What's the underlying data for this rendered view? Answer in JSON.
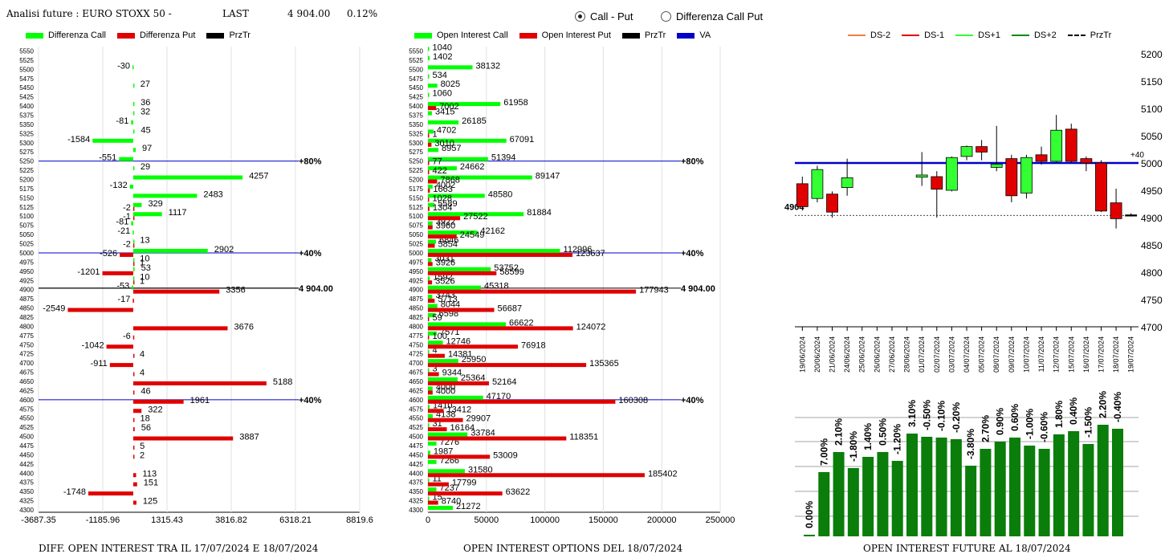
{
  "header": {
    "title": "Analisi future : EURO STOXX 50 -",
    "last_label": "LAST",
    "last_value": "4 904.00",
    "change": "0.12%"
  },
  "mode": {
    "options": [
      "Call - Put",
      "Differenza Call Put"
    ],
    "selected": "Call - Put"
  },
  "colors": {
    "green": "#00ff00",
    "red": "#e00000",
    "black": "#000000",
    "blue": "#0000cc",
    "dark_green": "#0a7d0a"
  },
  "legend1": [
    {
      "label": "Differenza Call",
      "color": "#00ff00"
    },
    {
      "label": "Differenza Put",
      "color": "#e00000"
    },
    {
      "label": "PrzTr",
      "color": "#000000"
    }
  ],
  "legend2": [
    {
      "label": "Open Interest Call",
      "color": "#00ff00"
    },
    {
      "label": "Open Interest Put",
      "color": "#e00000"
    },
    {
      "label": "PrzTr",
      "color": "#000000"
    },
    {
      "label": "VA",
      "color": "#0000cc"
    }
  ],
  "legend3": [
    {
      "label": "DS-2",
      "color": "#f08040",
      "dash": false
    },
    {
      "label": "DS-1",
      "color": "#e00000",
      "dash": false
    },
    {
      "label": "DS+1",
      "color": "#33ff33",
      "dash": false
    },
    {
      "label": "DS+2",
      "color": "#0a8a0a",
      "dash": false
    },
    {
      "label": "PrzTr",
      "color": "#000000",
      "dash": true
    }
  ],
  "titles": {
    "c1": "DIFF. OPEN INTEREST TRA IL 17/07/2024 E 18/07/2024",
    "c2": "OPEN INTEREST OPTIONS DEL 18/07/2024",
    "c3": "OPEN INTEREST FUTURE AL 18/07/2024"
  },
  "chart_data": [
    {
      "type": "bar",
      "orientation": "horizontal",
      "name": "diff_oi",
      "strikes": [
        5550,
        5525,
        5500,
        5475,
        5450,
        5425,
        5400,
        5375,
        5350,
        5325,
        5300,
        5275,
        5250,
        5225,
        5200,
        5175,
        5150,
        5125,
        5100,
        5075,
        5050,
        5025,
        5000,
        4975,
        4950,
        4925,
        4900,
        4875,
        4850,
        4825,
        4800,
        4775,
        4750,
        4725,
        4700,
        4675,
        4650,
        4625,
        4600,
        4575,
        4550,
        4525,
        4500,
        4475,
        4450,
        4425,
        4400,
        4375,
        4350,
        4325,
        4300
      ],
      "series": [
        {
          "name": "Differenza Call",
          "values": {
            "5500": -30,
            "5450": 27,
            "5400": 36,
            "5375": 32,
            "5350": -81,
            "5325": 45,
            "5300": -1584,
            "5275": 97,
            "5250": -551,
            "5225": 29,
            "5200": 4257,
            "5175": -132,
            "5150": 2483,
            "5125": 329,
            "5100": 1117,
            "5075": -81,
            "5050": -21,
            "5025": 13,
            "5000": 2902,
            "4975": 10,
            "4950": 53,
            "4925": 10,
            "4900": -53
          }
        },
        {
          "name": "Differenza Put",
          "values": {
            "5125": -2,
            "5100": -1,
            "5025": -2,
            "5000": -526,
            "4975": 1,
            "4950": -1201,
            "4925": 1,
            "4900": 3356,
            "4875": -17,
            "4850": -2549,
            "4800": 3676,
            "4775": -6,
            "4750": -1042,
            "4725": 4,
            "4700": -911,
            "4675": 4,
            "4650": 5188,
            "4625": 46,
            "4600": 1961,
            "4575": 322,
            "4550": 18,
            "4525": 56,
            "4500": 3887,
            "4475": 5,
            "4450": 2,
            "4400": 113,
            "4375": 151,
            "4350": -1748,
            "4325": 125
          }
        }
      ],
      "markers": [
        {
          "strike": 5250,
          "label": "80%",
          "color": "#0000cc"
        },
        {
          "strike": 5000,
          "label": "40%",
          "color": "#0000cc"
        },
        {
          "strike": 4904,
          "label": "4 904.00",
          "color": "#000000"
        },
        {
          "strike": 4600,
          "label": "40%",
          "color": "#0000cc"
        }
      ],
      "xticks": [
        "-3687.35",
        "-1185.96",
        "1315.43",
        "3816.82",
        "6318.21",
        "8819.6"
      ],
      "xlim": [
        -3687.35,
        8819.6
      ]
    },
    {
      "type": "bar",
      "orientation": "horizontal",
      "name": "open_interest",
      "series": [
        {
          "name": "Open Interest Call",
          "values": {
            "5550": 1040,
            "5525": 1402,
            "5500": 38132,
            "5475": 534,
            "5450": 8025,
            "5425": 1060,
            "5400": 61958,
            "5375": 3415,
            "5350": 26185,
            "5325": 4702,
            "5300": 67091,
            "5275": 8957,
            "5250": 51394,
            "5225": 24662,
            "5200": 89147,
            "5175": 4002,
            "5150": 48580,
            "5125": 5589,
            "5100": 81884,
            "5075": 3922,
            "5050": 42162,
            "5025": 6846,
            "5000": 112996,
            "4975": 3031,
            "4950": 53752,
            "4925": 1592,
            "4900": 45318,
            "4875": 3743,
            "4850": 8044,
            "4825": 6598,
            "4800": 66622,
            "4775": 7571,
            "4750": 12746,
            "4725": 4,
            "4700": 25950,
            "4675": 3,
            "4650": 25364,
            "4625": 4000,
            "4600": 47170,
            "4575": 1410,
            "4550": 4138,
            "4525": 31,
            "4500": 33784,
            "4475": 7276,
            "4450": 1987,
            "4425": 7266,
            "4400": 31580,
            "4375": 11,
            "4350": 7237,
            "4325": 15,
            "4300": 21272
          }
        },
        {
          "name": "Open Interest Put",
          "values": {
            "5400": 7002,
            "5325": 1,
            "5300": 3010,
            "5250": 77,
            "5225": 422,
            "5200": 7868,
            "5175": 1663,
            "5150": 1028,
            "5125": 1304,
            "5100": 27522,
            "5075": 3960,
            "5050": 24549,
            "5025": 5854,
            "5000": 123637,
            "4975": 3926,
            "4950": 58599,
            "4925": 3526,
            "4900": 177943,
            "4875": 5713,
            "4850": 56687,
            "4825": 59,
            "4800": 124072,
            "4775": 100,
            "4750": 76918,
            "4725": 14381,
            "4700": 135365,
            "4675": 9344,
            "4650": 52164,
            "4625": 4000,
            "4600": 160308,
            "4575": 13412,
            "4550": 29907,
            "4525": 16164,
            "4500": 118351,
            "4450": 53009,
            "4400": 185402,
            "4375": 17799,
            "4350": 63622,
            "4325": 8740
          }
        }
      ],
      "markers": [
        {
          "strike": 5250,
          "label": "80%",
          "color": "#0000cc"
        },
        {
          "strike": 5000,
          "label": "40%",
          "color": "#0000cc"
        },
        {
          "strike": 4904,
          "label": "4 904.00",
          "color": "#000000"
        },
        {
          "strike": 4600,
          "label": "40%",
          "color": "#0000cc"
        }
      ],
      "xticks": [
        "0",
        "50000",
        "100000",
        "150000",
        "200000",
        "250000"
      ],
      "xlim": [
        0,
        250000
      ]
    },
    {
      "type": "candlestick",
      "name": "future_price",
      "dates": [
        "19/06/2024",
        "20/06/2024",
        "21/06/2024",
        "24/06/2024",
        "25/06/2024",
        "26/06/2024",
        "27/06/2024",
        "28/06/2024",
        "01/07/2024",
        "02/07/2024",
        "03/07/2024",
        "04/07/2024",
        "05/07/2024",
        "08/07/2024",
        "09/07/2024",
        "10/07/2024",
        "11/07/2024",
        "12/07/2024",
        "15/07/2024",
        "16/07/2024",
        "17/07/2024",
        "18/07/2024",
        "19/07/2024"
      ],
      "candles": [
        {
          "i": 0,
          "o": 4920,
          "h": 4975,
          "l": 4913,
          "c": 4962,
          "color": "#e00000"
        },
        {
          "i": 1,
          "o": 4935,
          "h": 4995,
          "l": 4928,
          "c": 4988,
          "color": "#33ff33"
        },
        {
          "i": 2,
          "o": 4943,
          "h": 4948,
          "l": 4900,
          "c": 4910,
          "color": "#e00000"
        },
        {
          "i": 3,
          "o": 4955,
          "h": 5008,
          "l": 4940,
          "c": 4973,
          "color": "#33ff33"
        },
        {
          "i": 8,
          "o": 4974,
          "h": 5020,
          "l": 4958,
          "c": 4978,
          "color": "#33ff33"
        },
        {
          "i": 9,
          "o": 4975,
          "h": 4985,
          "l": 4900,
          "c": 4952,
          "color": "#e00000"
        },
        {
          "i": 10,
          "o": 4950,
          "h": 5012,
          "l": 4948,
          "c": 5010,
          "color": "#33ff33"
        },
        {
          "i": 11,
          "o": 5012,
          "h": 5032,
          "l": 5005,
          "c": 5030,
          "color": "#33ff33"
        },
        {
          "i": 12,
          "o": 5030,
          "h": 5042,
          "l": 5005,
          "c": 5020,
          "color": "#e00000"
        },
        {
          "i": 13,
          "o": 4992,
          "h": 5068,
          "l": 4985,
          "c": 4998,
          "color": "#33ff33"
        },
        {
          "i": 14,
          "o": 5008,
          "h": 5015,
          "l": 4928,
          "c": 4940,
          "color": "#e00000"
        },
        {
          "i": 15,
          "o": 4945,
          "h": 5015,
          "l": 4935,
          "c": 5010,
          "color": "#33ff33"
        },
        {
          "i": 16,
          "o": 5003,
          "h": 5030,
          "l": 4997,
          "c": 5015,
          "color": "#e00000"
        },
        {
          "i": 17,
          "o": 5003,
          "h": 5088,
          "l": 5000,
          "c": 5060,
          "color": "#33ff33"
        },
        {
          "i": 18,
          "o": 5062,
          "h": 5072,
          "l": 5000,
          "c": 5003,
          "color": "#e00000"
        },
        {
          "i": 19,
          "o": 5008,
          "h": 5012,
          "l": 4985,
          "c": 5000,
          "color": "#e00000"
        },
        {
          "i": 20,
          "o": 5000,
          "h": 5005,
          "l": 4910,
          "c": 4912,
          "color": "#e00000"
        },
        {
          "i": 21,
          "o": 4927,
          "h": 4953,
          "l": 4880,
          "c": 4898,
          "color": "#e00000"
        },
        {
          "i": 22,
          "o": 4905,
          "h": 4908,
          "l": 4902,
          "c": 4904,
          "color": "#000000"
        }
      ],
      "hline": {
        "value": 5000,
        "label": "+40",
        "color": "#0000cc"
      },
      "price_line": {
        "value": 4904,
        "label": "4904"
      },
      "yticks": [
        4700,
        4750,
        4800,
        4850,
        4900,
        4950,
        5000,
        5050,
        5100,
        5150,
        5200
      ],
      "ylim": [
        4700,
        5200
      ]
    },
    {
      "type": "bar",
      "name": "future_oi_change",
      "labels": [
        "0.00%",
        "7.00%",
        "2.10%",
        "-1.80%",
        "1.40%",
        "0.50%",
        "-1.20%",
        "3.10%",
        "-0.50%",
        "-0.10%",
        "-0.20%",
        "-3.80%",
        "2.70%",
        "0.90%",
        "0.60%",
        "-1.00%",
        "-0.60%",
        "1.80%",
        "0.40%",
        "-1.50%",
        "2.20%",
        "-0.40%"
      ],
      "heights": [
        2,
        80,
        105,
        85,
        99,
        105,
        94,
        128,
        124,
        123,
        121,
        88,
        109,
        118,
        123,
        113,
        109,
        127,
        131,
        115,
        139,
        134
      ],
      "color": "#0a7d0a"
    }
  ]
}
